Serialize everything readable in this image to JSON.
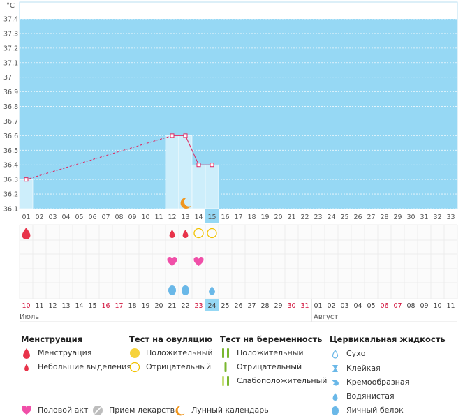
{
  "chart_data": {
    "type": "line",
    "unit_label": "°C",
    "y_ticks": [
      "37.4",
      "37.3",
      "37.2",
      "37.1",
      "37",
      "36.9",
      "36.8",
      "36.7",
      "36.6",
      "36.5",
      "36.4",
      "36.3",
      "36.2",
      "36.1"
    ],
    "ylim": [
      36.1,
      37.4
    ],
    "cycle_days": [
      "01",
      "02",
      "03",
      "04",
      "05",
      "06",
      "07",
      "08",
      "09",
      "10",
      "11",
      "12",
      "13",
      "14",
      "15",
      "16",
      "17",
      "18",
      "19",
      "20",
      "21",
      "22",
      "23",
      "24",
      "25",
      "26",
      "27",
      "28",
      "29",
      "30",
      "31",
      "32",
      "33"
    ],
    "current_day": "15",
    "temperature_points": [
      {
        "day": 1,
        "value": 36.3
      },
      {
        "day": 12,
        "value": 36.6
      },
      {
        "day": 13,
        "value": 36.6
      },
      {
        "day": 14,
        "value": 36.4
      },
      {
        "day": 15,
        "value": 36.4
      }
    ],
    "dashed_segments": [
      [
        1,
        12
      ]
    ],
    "bar_days": [
      1,
      12,
      13,
      14,
      15
    ],
    "dates": [
      {
        "d": "10",
        "red": true
      },
      {
        "d": "11",
        "red": false
      },
      {
        "d": "12",
        "red": false
      },
      {
        "d": "13",
        "red": false
      },
      {
        "d": "14",
        "red": false
      },
      {
        "d": "15",
        "red": false
      },
      {
        "d": "16",
        "red": true
      },
      {
        "d": "17",
        "red": true
      },
      {
        "d": "18",
        "red": false
      },
      {
        "d": "19",
        "red": false
      },
      {
        "d": "20",
        "red": false
      },
      {
        "d": "21",
        "red": false
      },
      {
        "d": "22",
        "red": false
      },
      {
        "d": "23",
        "red": true
      },
      {
        "d": "24",
        "red": false,
        "highlight": true
      },
      {
        "d": "25",
        "red": false
      },
      {
        "d": "26",
        "red": false
      },
      {
        "d": "27",
        "red": false
      },
      {
        "d": "28",
        "red": false
      },
      {
        "d": "29",
        "red": false
      },
      {
        "d": "30",
        "red": true
      },
      {
        "d": "31",
        "red": true
      },
      {
        "d": "01",
        "red": false
      },
      {
        "d": "02",
        "red": false
      },
      {
        "d": "03",
        "red": false
      },
      {
        "d": "04",
        "red": false
      },
      {
        "d": "05",
        "red": false
      },
      {
        "d": "06",
        "red": true
      },
      {
        "d": "07",
        "red": true
      },
      {
        "d": "08",
        "red": false
      },
      {
        "d": "09",
        "red": false
      },
      {
        "d": "10",
        "red": false
      },
      {
        "d": "11",
        "red": false
      }
    ],
    "months": [
      {
        "label": "Июль",
        "start_day": 1
      },
      {
        "label": "Август",
        "start_day": 23
      }
    ],
    "markers": [
      {
        "row": "menstruation",
        "day": 1,
        "kind": "drop-large"
      },
      {
        "row": "menstruation",
        "day": 12,
        "kind": "drop-small"
      },
      {
        "row": "menstruation",
        "day": 13,
        "kind": "drop-small"
      },
      {
        "row": "ovulation",
        "day": 14,
        "kind": "ring"
      },
      {
        "row": "ovulation",
        "day": 15,
        "kind": "ring"
      },
      {
        "row": "intercourse",
        "day": 12,
        "kind": "heart"
      },
      {
        "row": "intercourse",
        "day": 14,
        "kind": "heart"
      },
      {
        "row": "fluid",
        "day": 12,
        "kind": "egg-white"
      },
      {
        "row": "fluid",
        "day": 13,
        "kind": "egg-white"
      },
      {
        "row": "fluid",
        "day": 15,
        "kind": "watery"
      },
      {
        "row": "moon",
        "day": 13,
        "kind": "moon"
      }
    ]
  },
  "colors": {
    "plot_bg": "#96d8f4",
    "bar": "#cdeefb",
    "line": "#e0245e",
    "red_text": "#d0103a",
    "drop": "#e8334a",
    "heart": "#f04fa8",
    "ring": "#f2c200",
    "yellow": "#f6d23a",
    "green": "#7ab72f",
    "light_green": "#c6e07a",
    "blue": "#6ab8e8",
    "orange": "#f0961e"
  },
  "legend": {
    "menstruation": {
      "title": "Менструация",
      "items": [
        {
          "icon": "drop-large",
          "label": "Менструация"
        },
        {
          "icon": "drop-small",
          "label": "Небольшие выделения"
        }
      ]
    },
    "ovulation": {
      "title": "Тест на овуляцию",
      "items": [
        {
          "icon": "yellow-circle",
          "label": "Положительный"
        },
        {
          "icon": "ring",
          "label": "Отрицательный"
        }
      ]
    },
    "pregnancy": {
      "title": "Тест на беременность",
      "items": [
        {
          "icon": "double-green",
          "label": "Положительный"
        },
        {
          "icon": "single-green",
          "label": "Отрицательный"
        },
        {
          "icon": "faint-green",
          "label": "Слабоположительный"
        }
      ]
    },
    "fluid": {
      "title": "Цервикальная жидкость",
      "items": [
        {
          "icon": "dry",
          "label": "Сухо"
        },
        {
          "icon": "sticky",
          "label": "Клейкая"
        },
        {
          "icon": "creamy",
          "label": "Кремообразная"
        },
        {
          "icon": "watery",
          "label": "Водянистая"
        },
        {
          "icon": "egg-white",
          "label": "Яичный белок"
        }
      ]
    },
    "bottom": [
      {
        "icon": "heart",
        "label": "Половой акт"
      },
      {
        "icon": "pill",
        "label": "Прием лекарств"
      },
      {
        "icon": "moon",
        "label": "Лунный календарь"
      }
    ]
  }
}
